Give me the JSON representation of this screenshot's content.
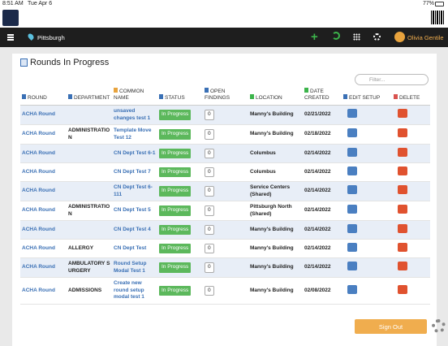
{
  "statusbar": {
    "time": "8:51 AM",
    "date": "Tue Apr 6",
    "battery": "77%"
  },
  "nav": {
    "location": "Pittsburgh",
    "user": "Olivia Gentile"
  },
  "page": {
    "title": "Rounds In Progress",
    "filter_placeholder": "Filter...",
    "sign_out": "Sign Out"
  },
  "table": {
    "headers": [
      "ROUND",
      "DEPARTMENT",
      "COMMON NAME",
      "STATUS",
      "OPEN FINDINGS",
      "LOCATION",
      "DATE CREATED",
      "EDIT SETUP",
      "DELETE"
    ],
    "rows": [
      [
        "ACHA Round",
        null,
        "unsaved changes test 1",
        "In Progress",
        0,
        "Manny's Building",
        "02/21/2022"
      ],
      [
        "ACHA Round",
        "ADMINISTRATION",
        "Template Move Test 12",
        "In Progress",
        0,
        "Manny's Building",
        "02/18/2022"
      ],
      [
        "ACHA Round",
        null,
        "CN Dept Test 6-1",
        "In Progress",
        0,
        "Columbus",
        "02/14/2022"
      ],
      [
        "ACHA Round",
        null,
        "CN Dept Test 7",
        "In Progress",
        0,
        "Columbus",
        "02/14/2022"
      ],
      [
        "ACHA Round",
        null,
        "CN Dept Test 6-111",
        "In Progress",
        0,
        "Service Centers (Shared)",
        "02/14/2022"
      ],
      [
        "ACHA Round",
        "ADMINISTRATION",
        "CN Dept Test 5",
        "In Progress",
        0,
        "Pittsburgh North (Shared)",
        "02/14/2022"
      ],
      [
        "ACHA Round",
        null,
        "CN Dept Test 4",
        "In Progress",
        0,
        "Manny's Building",
        "02/14/2022"
      ],
      [
        "ACHA Round",
        "ALLERGY",
        "CN Dept Test",
        "In Progress",
        0,
        "Manny's Building",
        "02/14/2022"
      ],
      [
        "ACHA Round",
        "AMBULATORY SURGERY",
        "Round Setup Modal Test 1",
        "In Progress",
        0,
        "Manny's Building",
        "02/14/2022"
      ],
      [
        "ACHA Round",
        "ADMISSIONS",
        "Create new round setup modal test 1",
        "In Progress",
        0,
        "Manny's Building",
        "02/08/2022"
      ]
    ]
  }
}
